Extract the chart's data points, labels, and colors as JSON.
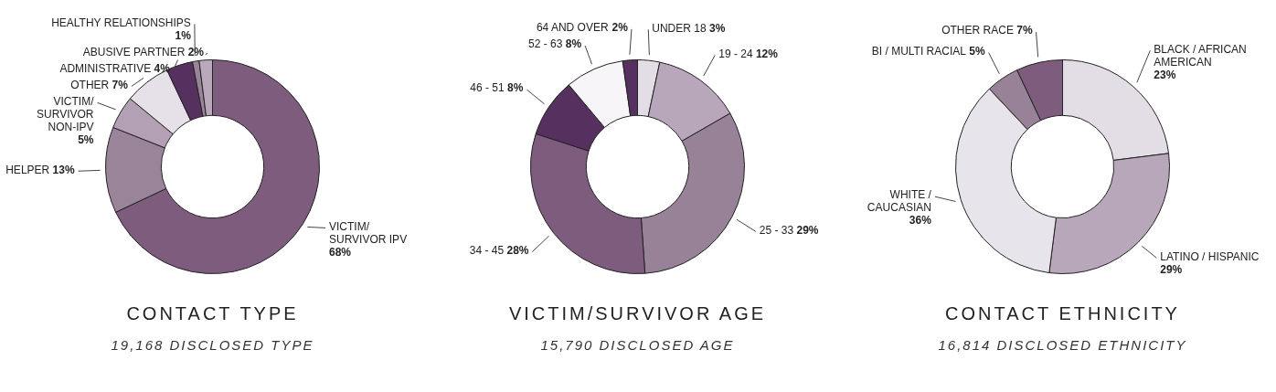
{
  "chart_data": [
    {
      "type": "donut",
      "title": "CONTACT TYPE",
      "subtitle": "19,168 DISCLOSED TYPE",
      "categories": [
        "VICTIM/ SURVIVOR IPV",
        "HELPER",
        "VICTIM/ SURVIVOR NON-IPV",
        "OTHER",
        "ADMINISTRATIVE",
        "HEALTHY RELATIONSHIPS",
        "ABUSIVE PARTNER"
      ],
      "values": [
        68,
        13,
        5,
        7,
        4,
        1,
        2
      ],
      "value_labels": [
        "68%",
        "13%",
        "5%",
        "7%",
        "4%",
        "1%",
        "2%"
      ],
      "colors": [
        "#7d5c7e",
        "#9a8499",
        "#b3a0b4",
        "#e6e1e9",
        "#56305f",
        "#9a8499",
        "#b9a9bb"
      ]
    },
    {
      "type": "donut",
      "title": "VICTIM/SURVIVOR AGE",
      "subtitle": "15,790 DISCLOSED AGE",
      "categories": [
        "UNDER 18",
        "19 - 24",
        "25 - 33",
        "34 - 45",
        "46 - 51",
        "52 - 63",
        "64 AND OVER"
      ],
      "values": [
        3,
        12,
        29,
        28,
        8,
        8,
        2
      ],
      "value_labels": [
        "3%",
        "12%",
        "29%",
        "28%",
        "8%",
        "8%",
        "2%"
      ],
      "colors": [
        "#e3dde6",
        "#b8a7ba",
        "#978298",
        "#7d5c7e",
        "#56305f",
        "#f7f5f8",
        "#56305f"
      ]
    },
    {
      "type": "donut",
      "title": "CONTACT ETHNICITY",
      "subtitle": "16,814 DISCLOSED ETHNICITY",
      "categories": [
        "BLACK / AFRICAN AMERICAN",
        "LATINO / HISPANIC",
        "WHITE / CAUCASIAN",
        "BI / MULTI RACIAL",
        "OTHER RACE"
      ],
      "values": [
        23,
        29,
        36,
        5,
        7
      ],
      "value_labels": [
        "23%",
        "29%",
        "36%",
        "5%",
        "7%"
      ],
      "colors": [
        "#e3dde6",
        "#b8a7ba",
        "#e8e4ec",
        "#978298",
        "#7d5c7e"
      ]
    }
  ]
}
